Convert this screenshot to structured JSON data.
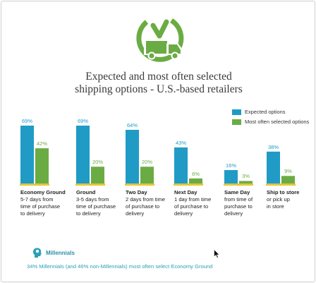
{
  "title_lines": [
    "Expected and most often selected",
    "shipping options - U.S.-based retailers"
  ],
  "icon": "delivery-truck-clock-icon",
  "colors": {
    "expected": "#1f9bc6",
    "selected": "#6aac43",
    "baseline": "#e3c63b",
    "icon": "#6aac43",
    "teal": "#2aa0b8"
  },
  "legend": [
    {
      "label": "Expected options"
    },
    {
      "label": "Most often selected options"
    }
  ],
  "chart_data": {
    "type": "bar",
    "categories": [
      "Economy Ground",
      "Ground",
      "Two Day",
      "Next Day",
      "Same Day",
      "Ship to store"
    ],
    "category_details": [
      {
        "name": "Economy Ground",
        "lines": [
          "5-7 days from",
          "time of purchase",
          "to delivery"
        ]
      },
      {
        "name": "Ground",
        "lines": [
          "3-5 days from",
          "time of purchase",
          "to delivery"
        ]
      },
      {
        "name": "Two Day",
        "lines": [
          "2 days from time",
          "of purchase to",
          "delivery"
        ]
      },
      {
        "name": "Next Day",
        "lines": [
          "1 day from time",
          "of purchase to",
          "delivery"
        ]
      },
      {
        "name": "Same Day",
        "lines": [
          "from time of",
          "purchase to",
          "delivery"
        ]
      },
      {
        "name": "Ship to store",
        "lines": [
          "or pick up",
          "in store"
        ]
      }
    ],
    "series": [
      {
        "name": "Expected options",
        "values": [
          69,
          69,
          64,
          43,
          16,
          38
        ],
        "labels": [
          "69%",
          "69%",
          "64%",
          "43%",
          "16%",
          "38%"
        ]
      },
      {
        "name": "Most often selected options",
        "values": [
          42,
          20,
          20,
          6,
          3,
          9
        ],
        "labels": [
          "42%",
          "20%",
          "20%",
          "6%",
          "3%",
          "9%"
        ]
      }
    ],
    "ylim": [
      0,
      100
    ],
    "grid": false,
    "legend_position": "top-right"
  },
  "millennials": {
    "icon": "head-profile-icon",
    "label": "Millennials",
    "text": "34% Millennials (and 46% non-Millennials) most often select Economy Ground"
  }
}
